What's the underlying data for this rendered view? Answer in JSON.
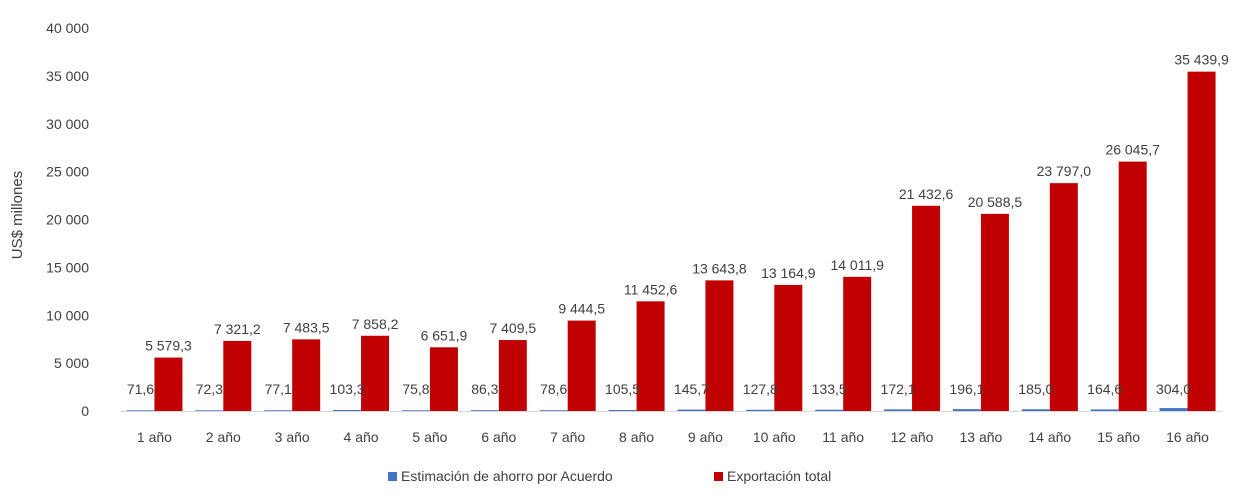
{
  "chart_data": {
    "type": "bar",
    "categories": [
      "1 año",
      "2 año",
      "3 año",
      "4 año",
      "5 año",
      "6 año",
      "7 año",
      "8 año",
      "9 año",
      "10 año",
      "11 año",
      "12 año",
      "13 año",
      "14 año",
      "15 año",
      "16 año"
    ],
    "series": [
      {
        "name": "Estimación de ahorro por Acuerdo",
        "color": "#4472c4",
        "values": [
          71.6,
          72.3,
          77.1,
          103.3,
          75.8,
          86.3,
          78.6,
          105.5,
          145.7,
          127.8,
          133.5,
          172.1,
          196.1,
          185.0,
          164.6,
          304.0
        ],
        "labels": [
          "71,6",
          "72,3",
          "77,1",
          "103,3",
          "75,8",
          "86,3",
          "78,6",
          "105,5",
          "145,7",
          "127,8",
          "133,5",
          "172,1",
          "196,1",
          "185,0",
          "164,6",
          "304,0"
        ]
      },
      {
        "name": "Exportación total",
        "color": "#c00000",
        "values": [
          5579.3,
          7321.2,
          7483.5,
          7858.2,
          6651.9,
          7409.5,
          9444.5,
          11452.6,
          13643.8,
          13164.9,
          14011.9,
          21432.6,
          20588.5,
          23797.0,
          26045.7,
          35439.9
        ],
        "labels": [
          "5 579,3",
          "7 321,2",
          "7 483,5",
          "7 858,2",
          "6 651,9",
          "7 409,5",
          "9 444,5",
          "11 452,6",
          "13 643,8",
          "13 164,9",
          "14 011,9",
          "21 432,6",
          "20 588,5",
          "23 797,0",
          "26 045,7",
          "35 439,9"
        ]
      }
    ],
    "ylabel": "US$ millones",
    "ylim": [
      0,
      40000
    ],
    "yticks": [
      0,
      5000,
      10000,
      15000,
      20000,
      25000,
      30000,
      35000,
      40000
    ],
    "ytick_labels": [
      "0",
      "5 000",
      "10 000",
      "15 000",
      "20 000",
      "25 000",
      "30 000",
      "35 000",
      "40 000"
    ],
    "grid": false,
    "legend_position": "bottom"
  }
}
